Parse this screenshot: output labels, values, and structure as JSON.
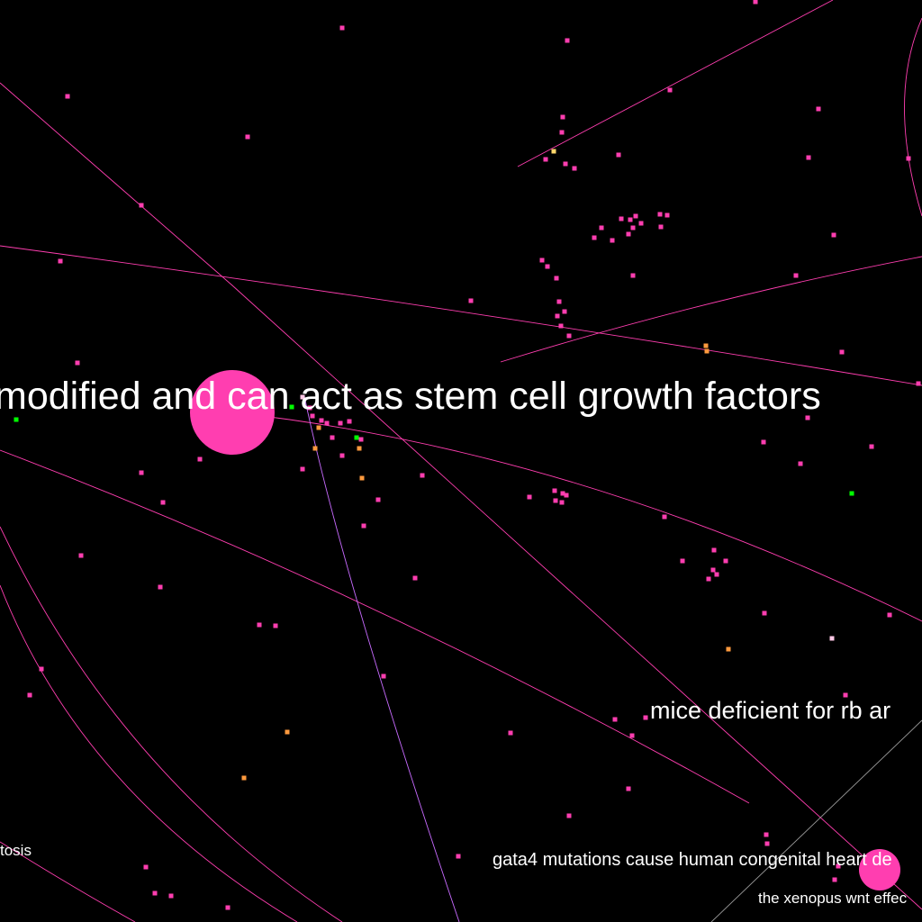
{
  "graph": {
    "background": "#000000",
    "colors": {
      "node_primary": "#ff3eb0",
      "node_green": "#00ff00",
      "node_orange": "#ff9a3e",
      "node_yellow": "#ffd86b",
      "node_light": "#ffc8e6",
      "edge_pink": "#ff3eb0",
      "edge_violet": "#c86bff",
      "edge_gray": "#9a9a9a",
      "label": "#ffffff"
    },
    "labels": {
      "main": "modified and can act as stem cell growth factors",
      "mice": "mice deficient for rb ar",
      "gata4": "gata4 mutations cause human congenital heart de",
      "xenopus": "the xenopus wnt effec",
      "tosis": "tosis"
    }
  }
}
